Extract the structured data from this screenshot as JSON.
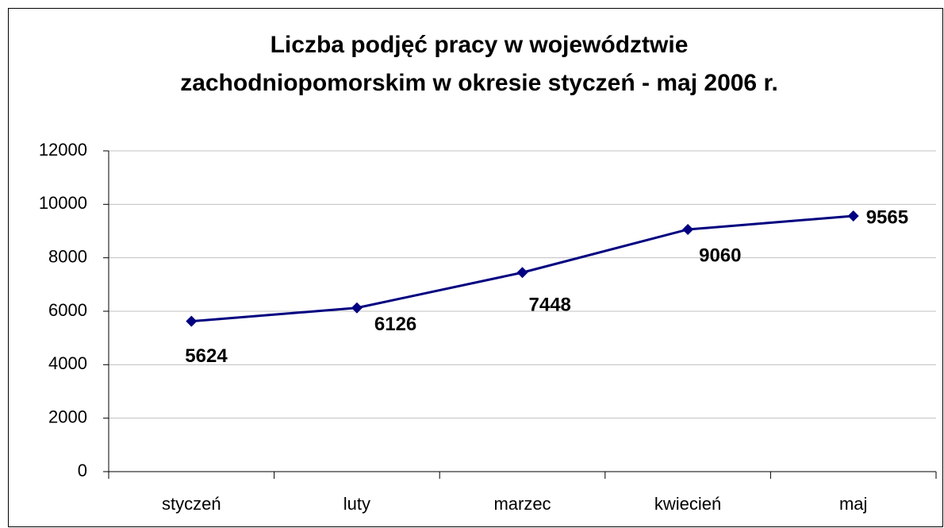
{
  "chart_data": {
    "type": "line",
    "title": [
      "Liczba podjęć pracy w województwie",
      "zachodniopomorskim w okresie styczeń - maj 2006 r."
    ],
    "categories": [
      "styczeń",
      "luty",
      "marzec",
      "kwiecień",
      "maj"
    ],
    "series": [
      {
        "name": "Liczba podjęć pracy",
        "color": "#000080",
        "values": [
          5624,
          6126,
          7448,
          9060,
          9565
        ]
      }
    ],
    "ylim": [
      0,
      12000
    ],
    "yticks": [
      0,
      2000,
      4000,
      6000,
      8000,
      10000,
      12000
    ],
    "grid": true,
    "legend": false
  }
}
